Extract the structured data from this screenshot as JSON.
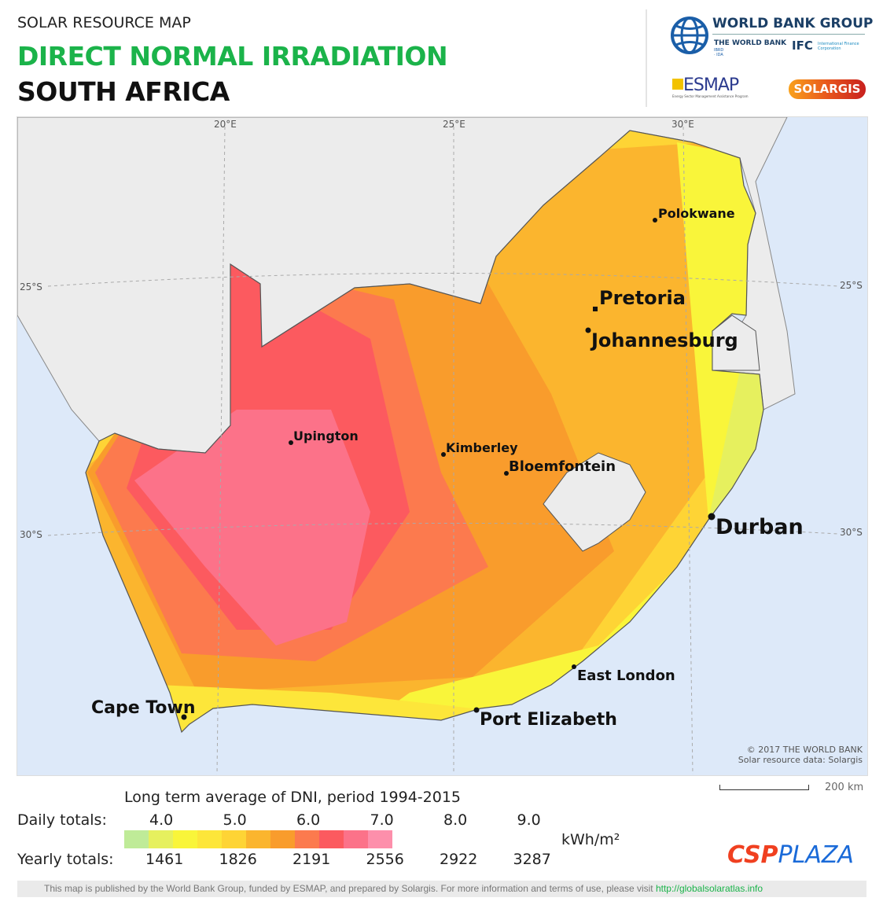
{
  "header": {
    "subtitle": "SOLAR RESOURCE MAP",
    "title": "DIRECT NORMAL IRRADIATION",
    "country": "SOUTH AFRICA"
  },
  "logos": {
    "wbg": "WORLD BANK GROUP",
    "wb": "THE WORLD BANK",
    "wb_sub": "IBRD · IDA",
    "ifc": "IFC",
    "ifc_sub": "International Finance Corporation",
    "esmap": "ESMAP",
    "esmap_sub": "Energy Sector Management Assistance Program",
    "solargis": "SOLARGIS"
  },
  "map": {
    "graticule": {
      "lon": [
        "20°E",
        "25°E",
        "30°E"
      ],
      "lat_left": [
        "25°S",
        "30°S"
      ],
      "lat_right": [
        "25°S",
        "30°S"
      ]
    },
    "cities": [
      "Polokwane",
      "Pretoria",
      "Johannesburg",
      "Upington",
      "Kimberley",
      "Bloemfontein",
      "Durban",
      "East London",
      "Port Elizabeth",
      "Cape Town"
    ],
    "copyright": "© 2017 THE WORLD BANK",
    "source": "Solar resource data: Solargis",
    "scale": "200 km",
    "colors": {
      "ocean": "#dde9f9",
      "land": "#ececec"
    }
  },
  "legend": {
    "title": "Long term average of DNI, period 1994-2015",
    "daily_label": "Daily totals:",
    "yearly_label": "Yearly totals:",
    "daily": [
      "4.0",
      "5.0",
      "6.0",
      "7.0",
      "8.0",
      "9.0"
    ],
    "yearly": [
      "1461",
      "1826",
      "2191",
      "2556",
      "2922",
      "3287"
    ],
    "unit": "kWh/m²",
    "colors": [
      "#bfeb98",
      "#e6f05e",
      "#f9f53a",
      "#fde63a",
      "#fed435",
      "#fbb52e",
      "#f99c2c",
      "#fc7a4e",
      "#fc5a5f",
      "#fc7289",
      "#fd8fab"
    ]
  },
  "footer": {
    "text": "This map is published by the World Bank Group, funded by ESMAP, and prepared by Solargis. For more information and terms of use, please visit ",
    "link": "http://globalsolaratlas.info",
    "watermark_a": "CSP",
    "watermark_b": "PLAZA"
  }
}
